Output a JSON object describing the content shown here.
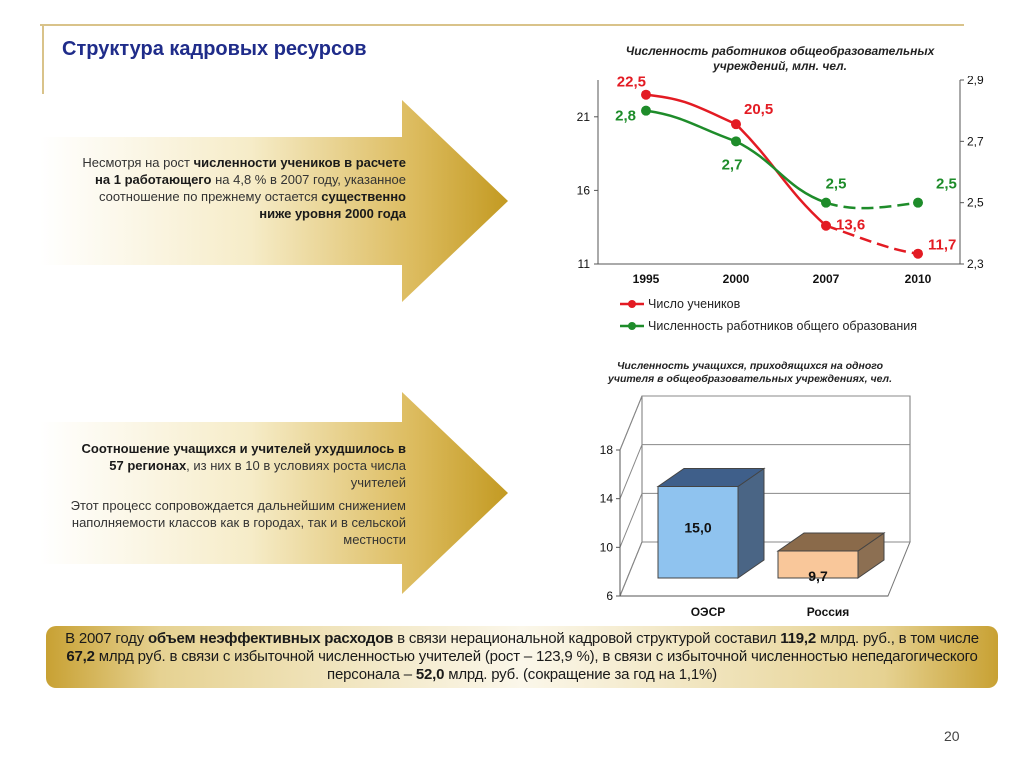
{
  "slide": {
    "title": "Структура кадровых ресурсов",
    "page_number": "20"
  },
  "arrow1": {
    "segments": [
      {
        "text": "Несмотря на рост ",
        "bold": false
      },
      {
        "text": "численности учеников в расчете на 1 работающего",
        "bold": true
      },
      {
        "text": " на 4,8 % в 2007 году, указанное соотношение по прежнему остается ",
        "bold": false
      },
      {
        "text": "существенно ниже уровня 2000 года",
        "bold": true
      }
    ]
  },
  "arrow2": {
    "para1": [
      {
        "text": "Соотношение учащихся и учителей ухудшилось в 57 регионах",
        "bold": true
      },
      {
        "text": ", из них в 10 в условиях роста числа учителей",
        "bold": false
      }
    ],
    "para2": "Этот процесс сопровождается дальнейшим снижением наполняемости классов как в городах, так и в сельской местности"
  },
  "bottom": {
    "segments": [
      {
        "text": "В 2007 году ",
        "bold": false
      },
      {
        "text": "объем неэффективных расходов",
        "bold": true
      },
      {
        "text": " в связи нерациональной кадровой структурой составил ",
        "bold": false
      },
      {
        "text": "119,2",
        "bold": true
      },
      {
        "text": " млрд. руб., в том числе ",
        "bold": false
      },
      {
        "text": "67,2",
        "bold": true
      },
      {
        "text": " млрд руб. в связи с избыточной численностью учителей (рост – 123,9 %), в связи с избыточной численностью непедагогического персонала – ",
        "bold": false
      },
      {
        "text": "52,0",
        "bold": true
      },
      {
        "text": " млрд. руб. (сокращение за год на 1,1%)",
        "bold": false
      }
    ]
  },
  "colors": {
    "title": "#1f2c8a",
    "gold_dark": "#c9a12a",
    "gold_light": "#fbf6e4",
    "red_series": "#e31b23",
    "green_series": "#1e8c2a",
    "bar_oecd": "#8fc3ef",
    "bar_russia": "#f9c79a"
  },
  "chart_data": [
    {
      "type": "line",
      "title": "Численность работников общеобразовательных учреждений, млн. чел.",
      "title_lines": [
        "Численность работников общеобразовательных",
        "учреждений, млн. чел."
      ],
      "categories": [
        "1995",
        "2000",
        "2007",
        "2010"
      ],
      "y_left": {
        "range": [
          11,
          23.5
        ],
        "ticks": [
          "11",
          "16",
          "21"
        ]
      },
      "y_right": {
        "range": [
          2.3,
          2.9
        ],
        "ticks": [
          "2,3",
          "2,5",
          "2,7",
          "2,9"
        ]
      },
      "legend_position": "bottom",
      "series": [
        {
          "name": "Число учеников",
          "axis": "left",
          "values": [
            22.5,
            20.5,
            13.6,
            11.7
          ],
          "labels": [
            "22,5",
            "20,5",
            "13,6",
            "11,7"
          ],
          "dashed_last": true
        },
        {
          "name": "Численность работников общего образования",
          "axis": "right",
          "values": [
            2.8,
            2.7,
            2.5,
            2.5
          ],
          "labels": [
            "2,8",
            "2,7",
            "2,5",
            "2,5"
          ],
          "dashed_last": true
        }
      ]
    },
    {
      "type": "bar",
      "title": "Численность учащихся, приходящихся на одного учителя в общеобразовательных учреждениях, чел.",
      "title_lines": [
        "Численность учащихся, приходящихся на одного",
        "учителя в общеобразовательных учреждениях, чел."
      ],
      "categories": [
        "ОЭСР",
        "Россия"
      ],
      "values": [
        15.0,
        9.7
      ],
      "labels": [
        "15,0",
        "9,7"
      ],
      "y_range": [
        6,
        18
      ],
      "y_ticks": [
        "6",
        "10",
        "14",
        "18"
      ],
      "style": "3d"
    }
  ]
}
